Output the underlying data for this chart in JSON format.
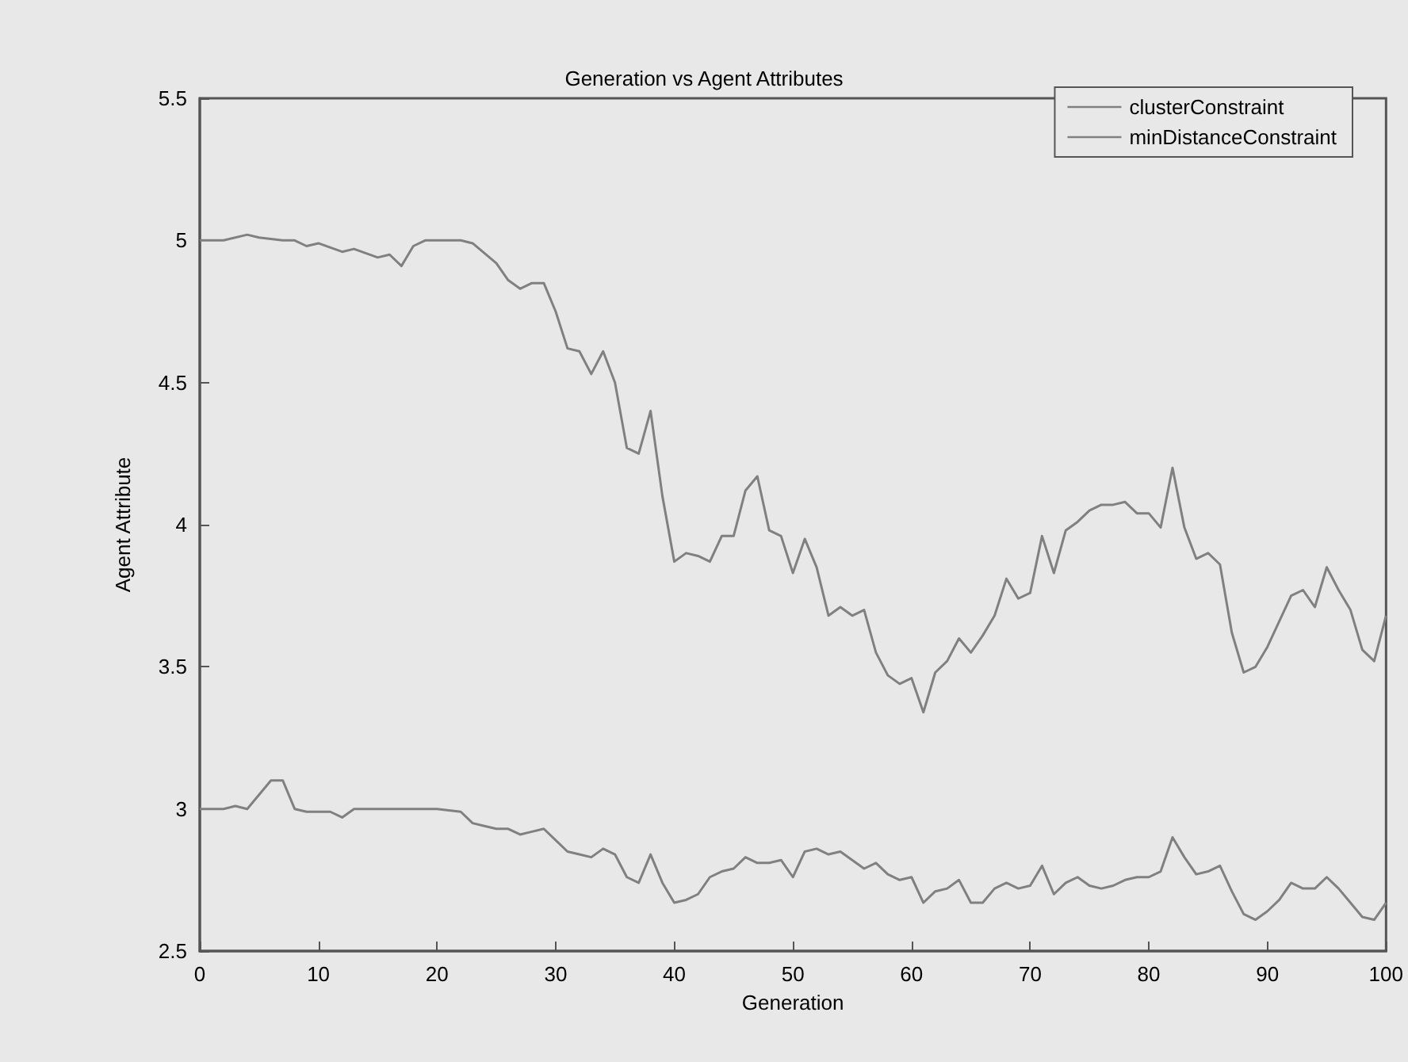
{
  "chart_data": {
    "type": "line",
    "title": "Generation vs Agent Attributes",
    "xlabel": "Generation",
    "ylabel": "Agent Attribute",
    "xlim": [
      0,
      100
    ],
    "xticks": [
      0,
      10,
      20,
      30,
      40,
      50,
      60,
      70,
      80,
      90,
      100
    ],
    "ylim": [
      2.5,
      5.5
    ],
    "yticks": [
      2.5,
      3,
      3.5,
      4,
      4.5,
      5,
      5.5
    ],
    "grid": false,
    "legend": "top right",
    "marker": "none",
    "line_style": "solid",
    "series": [
      {
        "name": "clusterConstraint",
        "color": "#808080",
        "x": [
          0,
          2,
          4,
          5,
          7,
          8,
          9,
          10,
          12,
          13,
          15,
          16,
          17,
          18,
          19,
          20,
          22,
          23,
          25,
          26,
          27,
          28,
          29,
          30,
          31,
          32,
          33,
          34,
          35,
          36,
          37,
          38,
          39,
          40,
          41,
          42,
          43,
          44,
          45,
          46,
          47,
          48,
          49,
          50,
          51,
          52,
          53,
          54,
          55,
          56,
          57,
          58,
          59,
          60,
          61,
          62,
          63,
          64,
          65,
          66,
          67,
          68,
          69,
          70,
          71,
          72,
          73,
          74,
          75,
          76,
          77,
          78,
          79,
          80,
          81,
          82,
          83,
          84,
          85,
          86,
          87,
          88,
          89,
          90,
          91,
          92,
          93,
          94,
          95,
          96,
          97,
          98,
          99,
          100
        ],
        "values": [
          5.0,
          5.0,
          5.02,
          5.01,
          5.0,
          5.0,
          4.98,
          4.99,
          4.96,
          4.97,
          4.94,
          4.95,
          4.91,
          4.98,
          5.0,
          5.0,
          5.0,
          4.99,
          4.92,
          4.86,
          4.83,
          4.85,
          4.85,
          4.75,
          4.62,
          4.61,
          4.53,
          4.61,
          4.5,
          4.27,
          4.25,
          4.4,
          4.1,
          3.87,
          3.9,
          3.89,
          3.87,
          3.96,
          3.96,
          4.12,
          4.17,
          3.98,
          3.96,
          3.83,
          3.95,
          3.85,
          3.68,
          3.71,
          3.68,
          3.7,
          3.55,
          3.47,
          3.44,
          3.46,
          3.34,
          3.48,
          3.52,
          3.6,
          3.55,
          3.61,
          3.68,
          3.81,
          3.74,
          3.76,
          3.96,
          3.83,
          3.98,
          4.01,
          4.05,
          4.07,
          4.07,
          4.08,
          4.04,
          4.04,
          3.99,
          4.2,
          3.99,
          3.88,
          3.9,
          3.86,
          3.62,
          3.48,
          3.5,
          3.57,
          3.66,
          3.75,
          3.77,
          3.71,
          3.85,
          3.77,
          3.7,
          3.56,
          3.52,
          3.68
        ]
      },
      {
        "name": "minDistanceConstraint",
        "color": "#808080",
        "x": [
          0,
          2,
          3,
          4,
          5,
          6,
          7,
          8,
          9,
          10,
          11,
          12,
          13,
          15,
          20,
          22,
          23,
          24,
          25,
          26,
          27,
          28,
          29,
          30,
          31,
          32,
          33,
          34,
          35,
          36,
          37,
          38,
          39,
          40,
          41,
          42,
          43,
          44,
          45,
          46,
          47,
          48,
          49,
          50,
          51,
          52,
          53,
          54,
          55,
          56,
          57,
          58,
          59,
          60,
          61,
          62,
          63,
          64,
          65,
          66,
          67,
          68,
          69,
          70,
          71,
          72,
          73,
          74,
          75,
          76,
          77,
          78,
          79,
          80,
          81,
          82,
          83,
          84,
          85,
          86,
          87,
          88,
          89,
          90,
          91,
          92,
          93,
          94,
          95,
          96,
          97,
          98,
          99,
          100
        ],
        "values": [
          3.0,
          3.0,
          3.01,
          3.0,
          3.05,
          3.1,
          3.1,
          3.0,
          2.99,
          2.99,
          2.99,
          2.97,
          3.0,
          3.0,
          3.0,
          2.99,
          2.95,
          2.94,
          2.93,
          2.93,
          2.91,
          2.92,
          2.93,
          2.89,
          2.85,
          2.84,
          2.83,
          2.86,
          2.84,
          2.76,
          2.74,
          2.84,
          2.74,
          2.67,
          2.68,
          2.7,
          2.76,
          2.78,
          2.79,
          2.83,
          2.81,
          2.81,
          2.82,
          2.76,
          2.85,
          2.86,
          2.84,
          2.85,
          2.82,
          2.79,
          2.81,
          2.77,
          2.75,
          2.76,
          2.67,
          2.71,
          2.72,
          2.75,
          2.67,
          2.67,
          2.72,
          2.74,
          2.72,
          2.73,
          2.8,
          2.7,
          2.74,
          2.76,
          2.73,
          2.72,
          2.73,
          2.75,
          2.76,
          2.76,
          2.78,
          2.9,
          2.83,
          2.77,
          2.78,
          2.8,
          2.71,
          2.63,
          2.61,
          2.64,
          2.68,
          2.74,
          2.72,
          2.72,
          2.76,
          2.72,
          2.67,
          2.62,
          2.61,
          2.67
        ]
      }
    ]
  }
}
